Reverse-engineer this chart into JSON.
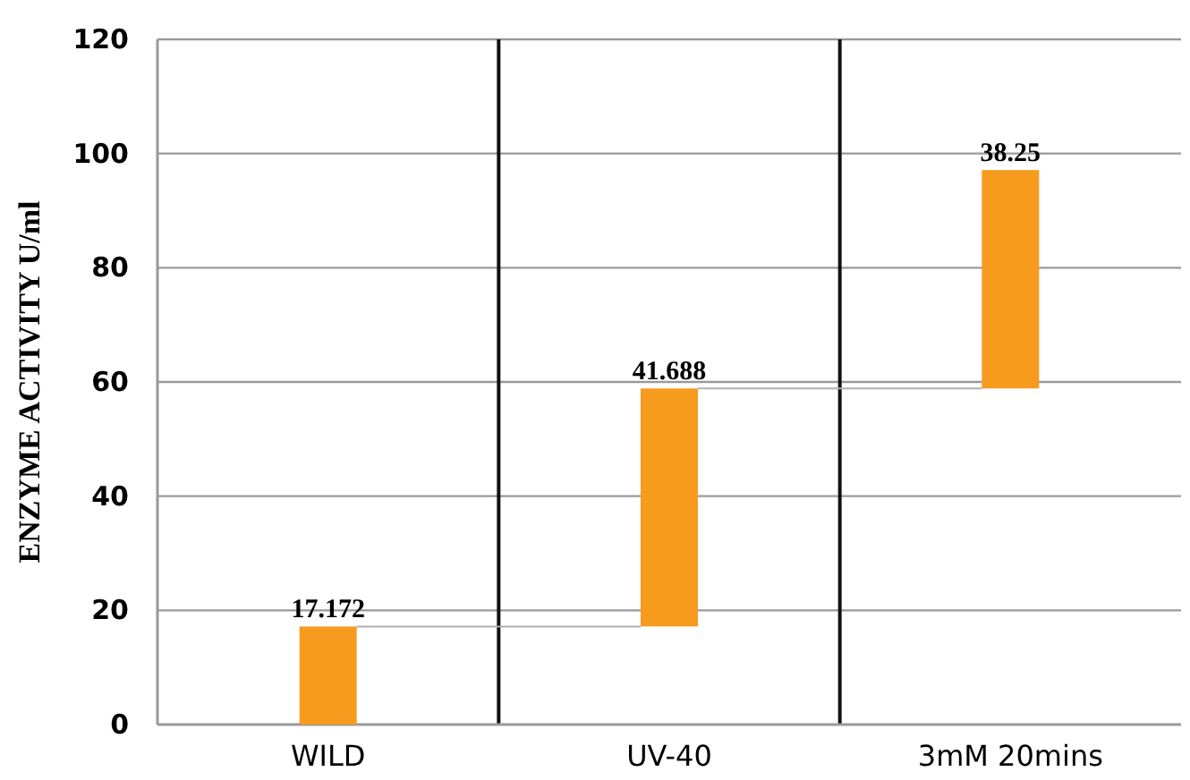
{
  "chart_data": {
    "type": "bar",
    "ylabel": "ENZYME ACTIVITY U/ml",
    "categories": [
      "WILD",
      "UV-40",
      "3mM 20mins"
    ],
    "values": [
      17.172,
      41.688,
      38.25
    ],
    "base": [
      0,
      17.172,
      58.86
    ],
    "color": "#f79b1e",
    "data_labels": true,
    "ylim": [
      0,
      120
    ],
    "yticks": [
      0,
      20,
      40,
      60,
      80,
      100,
      120
    ],
    "grid": true
  }
}
